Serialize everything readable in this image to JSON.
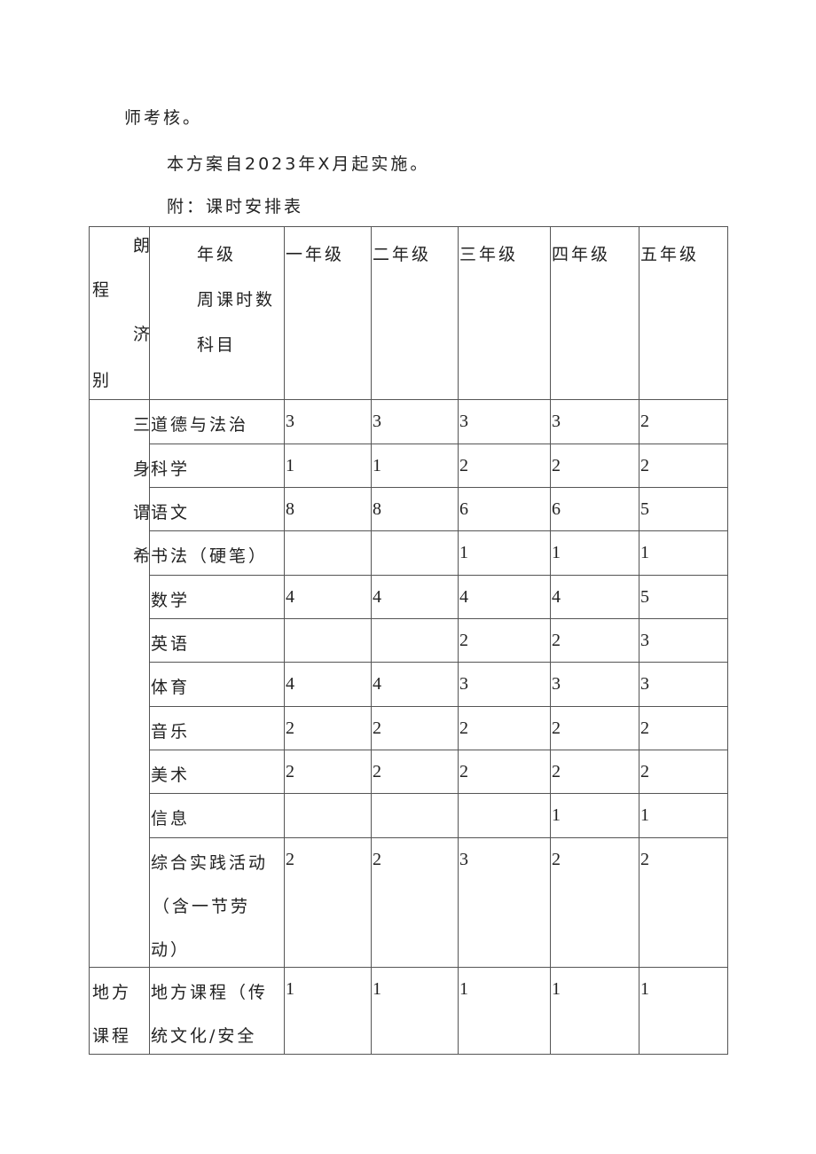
{
  "paragraphs": [
    "师考核。",
    "本方案自2023年X月起实施。",
    "附：课时安排表"
  ],
  "table": {
    "corner_left": [
      "程",
      "别"
    ],
    "corner_mid": [
      "朗",
      "济"
    ],
    "corner_labels": [
      "年级",
      "周课时数",
      "科目"
    ],
    "grades": [
      "一年级",
      "二年级",
      "三年级",
      "四年级",
      "五年级"
    ],
    "section1_label_fragments": [
      "三",
      "身",
      "谓",
      "希"
    ],
    "rows": [
      {
        "subject": [
          "道德与法治"
        ],
        "values": [
          "3",
          "3",
          "3",
          "3",
          "2"
        ]
      },
      {
        "subject": [
          "科学"
        ],
        "values": [
          "1",
          "1",
          "2",
          "2",
          "2"
        ]
      },
      {
        "subject": [
          "语文"
        ],
        "values": [
          "8",
          "8",
          "6",
          "6",
          "5"
        ]
      },
      {
        "subject": [
          "书法（硬笔）"
        ],
        "values": [
          "",
          "",
          "1",
          "1",
          "1"
        ]
      },
      {
        "subject": [
          "数学"
        ],
        "values": [
          "4",
          "4",
          "4",
          "4",
          "5"
        ]
      },
      {
        "subject": [
          "英语"
        ],
        "values": [
          "",
          "",
          "2",
          "2",
          "3"
        ]
      },
      {
        "subject": [
          "体育"
        ],
        "values": [
          "4",
          "4",
          "3",
          "3",
          "3"
        ]
      },
      {
        "subject": [
          "音乐"
        ],
        "values": [
          "2",
          "2",
          "2",
          "2",
          "2"
        ]
      },
      {
        "subject": [
          "美术"
        ],
        "values": [
          "2",
          "2",
          "2",
          "2",
          "2"
        ]
      },
      {
        "subject": [
          "信息"
        ],
        "values": [
          "",
          "",
          "",
          "1",
          "1"
        ]
      },
      {
        "subject": [
          "综合实践活动",
          "（含一节劳",
          "动）"
        ],
        "values": [
          "2",
          "2",
          "3",
          "2",
          "2"
        ]
      }
    ],
    "local": {
      "category": [
        "地方",
        "课程"
      ],
      "subject": [
        "地方课程（传",
        "统文化/安全"
      ],
      "values": [
        "1",
        "1",
        "1",
        "1",
        "1"
      ]
    }
  }
}
